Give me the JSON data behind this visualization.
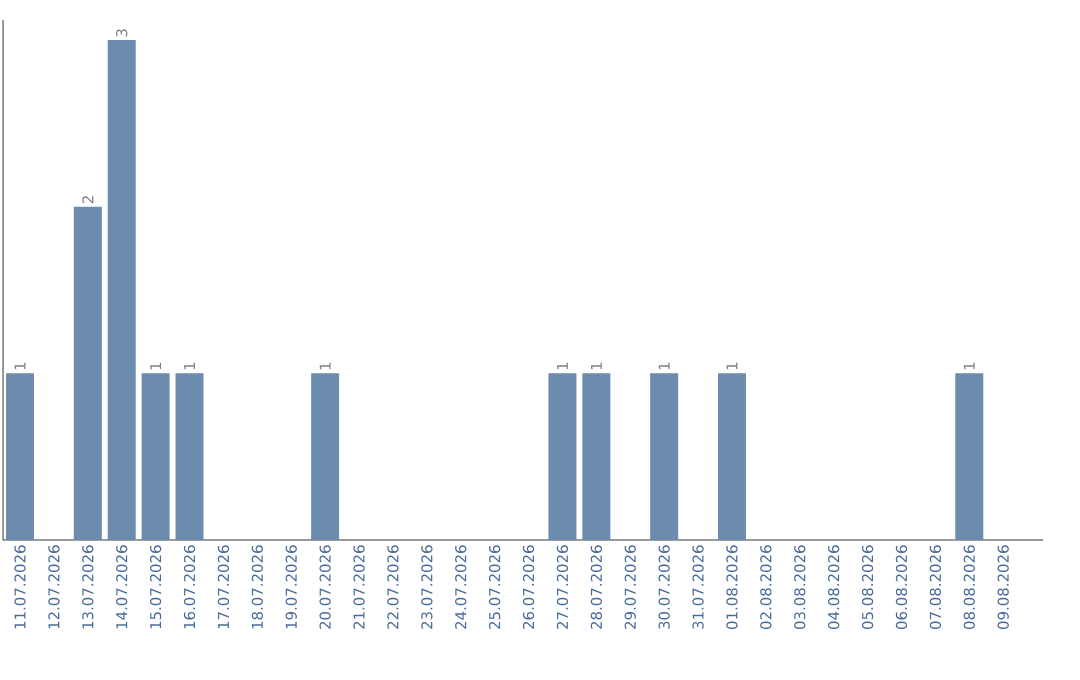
{
  "chart_data": {
    "type": "bar",
    "categories": [
      "11.07.2026",
      "12.07.2026",
      "13.07.2026",
      "14.07.2026",
      "15.07.2026",
      "16.07.2026",
      "17.07.2026",
      "18.07.2026",
      "19.07.2026",
      "20.07.2026",
      "21.07.2026",
      "22.07.2026",
      "23.07.2026",
      "24.07.2026",
      "25.07.2026",
      "26.07.2026",
      "27.07.2026",
      "28.07.2026",
      "29.07.2026",
      "30.07.2026",
      "31.07.2026",
      "01.08.2026",
      "02.08.2026",
      "03.08.2026",
      "04.08.2026",
      "05.08.2026",
      "06.08.2026",
      "07.08.2026",
      "08.08.2026",
      "09.08.2026"
    ],
    "values": [
      1,
      0,
      2,
      3,
      1,
      1,
      0,
      0,
      0,
      1,
      0,
      0,
      0,
      0,
      0,
      0,
      1,
      1,
      0,
      1,
      0,
      1,
      0,
      0,
      0,
      0,
      0,
      0,
      1,
      0
    ],
    "value_labels": [
      "1",
      null,
      "2",
      "3",
      "1",
      "1",
      null,
      null,
      null,
      "1",
      null,
      null,
      null,
      null,
      null,
      null,
      "1",
      "1",
      null,
      "1",
      null,
      "1",
      null,
      null,
      null,
      null,
      null,
      null,
      "1",
      null
    ],
    "color": "#6b8cae",
    "tick_labels": "x",
    "grid": false
  }
}
